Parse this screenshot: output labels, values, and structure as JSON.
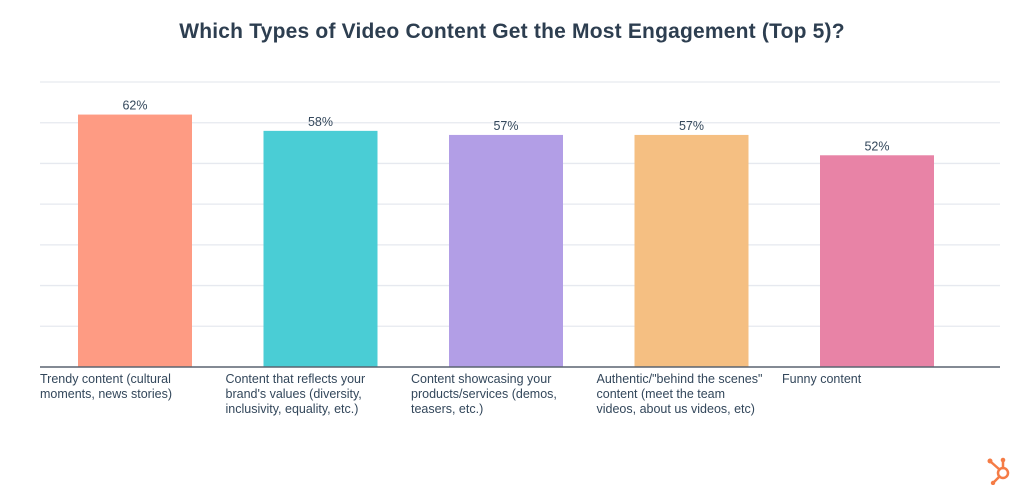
{
  "chart_data": {
    "type": "bar",
    "title": "Which Types of Video Content Get the Most Engagement (Top 5)?",
    "categories": [
      "Trendy content (cultural moments, news stories)",
      "Content that reflects your brand's values (diversity, inclusivity, equality, etc.)",
      "Content showcasing your products/services (demos, teasers, etc.)",
      "Authentic/\"behind the scenes\" content (meet the team videos, about us videos, etc)",
      "Funny content"
    ],
    "values": [
      62,
      58,
      57,
      57,
      52
    ],
    "data_labels": [
      "62%",
      "58%",
      "57%",
      "57%",
      "52%"
    ],
    "colors": [
      "#fe9b83",
      "#4acdd5",
      "#b29ee6",
      "#f5bf82",
      "#e883a6"
    ],
    "xlabel": "",
    "ylabel": "",
    "ylim": [
      0,
      70
    ],
    "grid_step": 10,
    "grid": true,
    "legend": "none"
  },
  "brand": {
    "logo": "hubspot-sprocket-icon",
    "color": "#f57c46"
  }
}
